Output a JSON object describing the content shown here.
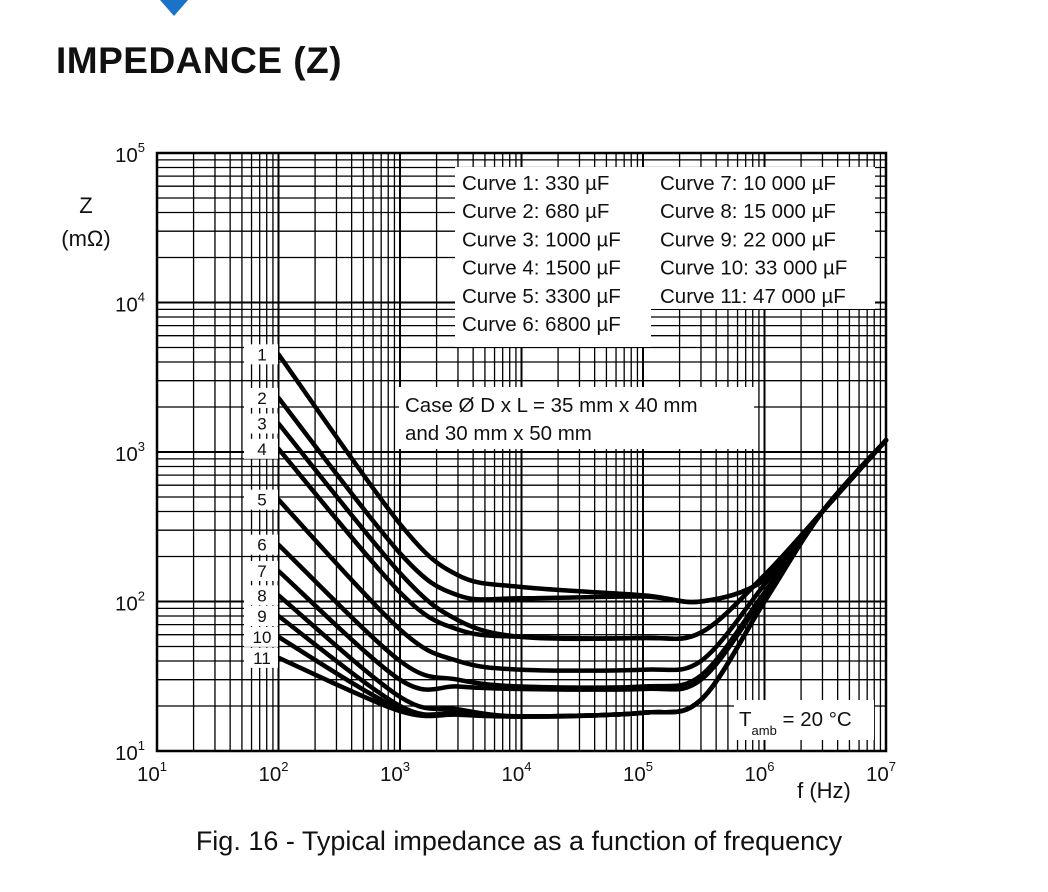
{
  "page": {
    "heading": "IMPEDANCE (Z)",
    "caption": "Fig. 16 - Typical impedance as a function of frequency",
    "marker_color": "#1a73c8"
  },
  "chart_data": {
    "type": "line",
    "x_scale": "log",
    "y_scale": "log",
    "xlim": [
      10,
      10000000
    ],
    "ylim": [
      10,
      100000
    ],
    "xlabel": "f (Hz)",
    "ylabel_line1": "Z",
    "ylabel_line2": "(mΩ)",
    "x_ticks": [
      {
        "value": 10,
        "base": "10",
        "exp": "1"
      },
      {
        "value": 100,
        "base": "10",
        "exp": "2"
      },
      {
        "value": 1000,
        "base": "10",
        "exp": "3"
      },
      {
        "value": 10000,
        "base": "10",
        "exp": "4"
      },
      {
        "value": 100000,
        "base": "10",
        "exp": "5"
      },
      {
        "value": 1000000,
        "base": "10",
        "exp": "6"
      },
      {
        "value": 10000000,
        "base": "10",
        "exp": "7"
      }
    ],
    "y_ticks": [
      {
        "value": 10,
        "base": "10",
        "exp": "1"
      },
      {
        "value": 100,
        "base": "10",
        "exp": "2"
      },
      {
        "value": 1000,
        "base": "10",
        "exp": "3"
      },
      {
        "value": 10000,
        "base": "10",
        "exp": "4"
      },
      {
        "value": 100000,
        "base": "10",
        "exp": "5"
      }
    ],
    "grid": true,
    "legend": [
      "Curve 1: 330 µF",
      "Curve 2: 680 µF",
      "Curve 3: 1000 µF",
      "Curve 4: 1500 µF",
      "Curve 5: 3300 µF",
      "Curve 6: 6800 µF",
      "Curve 7: 10 000 µF",
      "Curve 8: 15 000 µF",
      "Curve 9: 22 000 µF",
      "Curve 10: 33 000 µF",
      "Curve 11: 47 000 µF"
    ],
    "legend_placement": "top-right",
    "case_note": [
      "Case Ø D x L = 35 mm x 40 mm",
      "and 30 mm x 50 mm"
    ],
    "temperature_note": {
      "main": "T",
      "sub": "amb",
      "rest": " = 20 °C"
    },
    "series": [
      {
        "name": "1",
        "points": [
          [
            100,
            4500
          ],
          [
            1000,
            330
          ],
          [
            3000,
            150
          ],
          [
            10000,
            125
          ],
          [
            100000,
            110
          ],
          [
            300000,
            100
          ],
          [
            1000000,
            140
          ],
          [
            3000000,
            400
          ],
          [
            10000000,
            1200
          ]
        ]
      },
      {
        "name": "2",
        "points": [
          [
            100,
            2300
          ],
          [
            1000,
            210
          ],
          [
            3000,
            110
          ],
          [
            10000,
            105
          ],
          [
            100000,
            108
          ],
          [
            300000,
            100
          ],
          [
            1000000,
            140
          ],
          [
            3000000,
            400
          ],
          [
            10000000,
            1200
          ]
        ]
      },
      {
        "name": "3",
        "points": [
          [
            100,
            1550
          ],
          [
            1000,
            155
          ],
          [
            3000,
            75
          ],
          [
            10000,
            58
          ],
          [
            100000,
            57
          ],
          [
            300000,
            62
          ],
          [
            1000000,
            150
          ],
          [
            3000000,
            400
          ],
          [
            10000000,
            1200
          ]
        ]
      },
      {
        "name": "4",
        "points": [
          [
            100,
            1050
          ],
          [
            1000,
            115
          ],
          [
            3000,
            65
          ],
          [
            10000,
            58
          ],
          [
            100000,
            57
          ],
          [
            300000,
            62
          ],
          [
            1000000,
            150
          ],
          [
            3000000,
            400
          ],
          [
            10000000,
            1200
          ]
        ]
      },
      {
        "name": "5",
        "points": [
          [
            100,
            480
          ],
          [
            1000,
            65
          ],
          [
            3000,
            40
          ],
          [
            10000,
            35
          ],
          [
            100000,
            35
          ],
          [
            300000,
            40
          ],
          [
            1000000,
            130
          ],
          [
            3000000,
            400
          ],
          [
            10000000,
            1200
          ]
        ]
      },
      {
        "name": "6",
        "points": [
          [
            100,
            240
          ],
          [
            1000,
            40
          ],
          [
            3000,
            30
          ],
          [
            10000,
            27
          ],
          [
            100000,
            27
          ],
          [
            300000,
            32
          ],
          [
            1000000,
            115
          ],
          [
            3000000,
            400
          ],
          [
            10000000,
            1200
          ]
        ]
      },
      {
        "name": "7",
        "points": [
          [
            100,
            160
          ],
          [
            1000,
            30
          ],
          [
            3000,
            27
          ],
          [
            10000,
            26
          ],
          [
            100000,
            26
          ],
          [
            300000,
            30
          ],
          [
            1000000,
            110
          ],
          [
            3000000,
            400
          ],
          [
            10000000,
            1200
          ]
        ]
      },
      {
        "name": "8",
        "points": [
          [
            100,
            110
          ],
          [
            1000,
            23
          ],
          [
            3000,
            19
          ],
          [
            10000,
            17
          ],
          [
            100000,
            18
          ],
          [
            300000,
            22
          ],
          [
            1000000,
            100
          ],
          [
            3000000,
            400
          ],
          [
            10000000,
            1200
          ]
        ]
      },
      {
        "name": "9",
        "points": [
          [
            100,
            80
          ],
          [
            1000,
            20
          ],
          [
            3000,
            18
          ],
          [
            10000,
            17
          ],
          [
            100000,
            18
          ],
          [
            300000,
            22
          ],
          [
            1000000,
            100
          ],
          [
            3000000,
            400
          ],
          [
            10000000,
            1200
          ]
        ]
      },
      {
        "name": "10",
        "points": [
          [
            100,
            58
          ],
          [
            1000,
            19
          ],
          [
            3000,
            18
          ],
          [
            10000,
            17
          ],
          [
            100000,
            18
          ],
          [
            300000,
            22
          ],
          [
            1000000,
            100
          ],
          [
            3000000,
            400
          ],
          [
            10000000,
            1200
          ]
        ]
      },
      {
        "name": "11",
        "points": [
          [
            100,
            42
          ],
          [
            1000,
            18.5
          ],
          [
            3000,
            17.5
          ],
          [
            10000,
            17
          ],
          [
            100000,
            18
          ],
          [
            300000,
            22
          ],
          [
            1000000,
            100
          ],
          [
            3000000,
            400
          ],
          [
            10000000,
            1200
          ]
        ]
      }
    ]
  }
}
